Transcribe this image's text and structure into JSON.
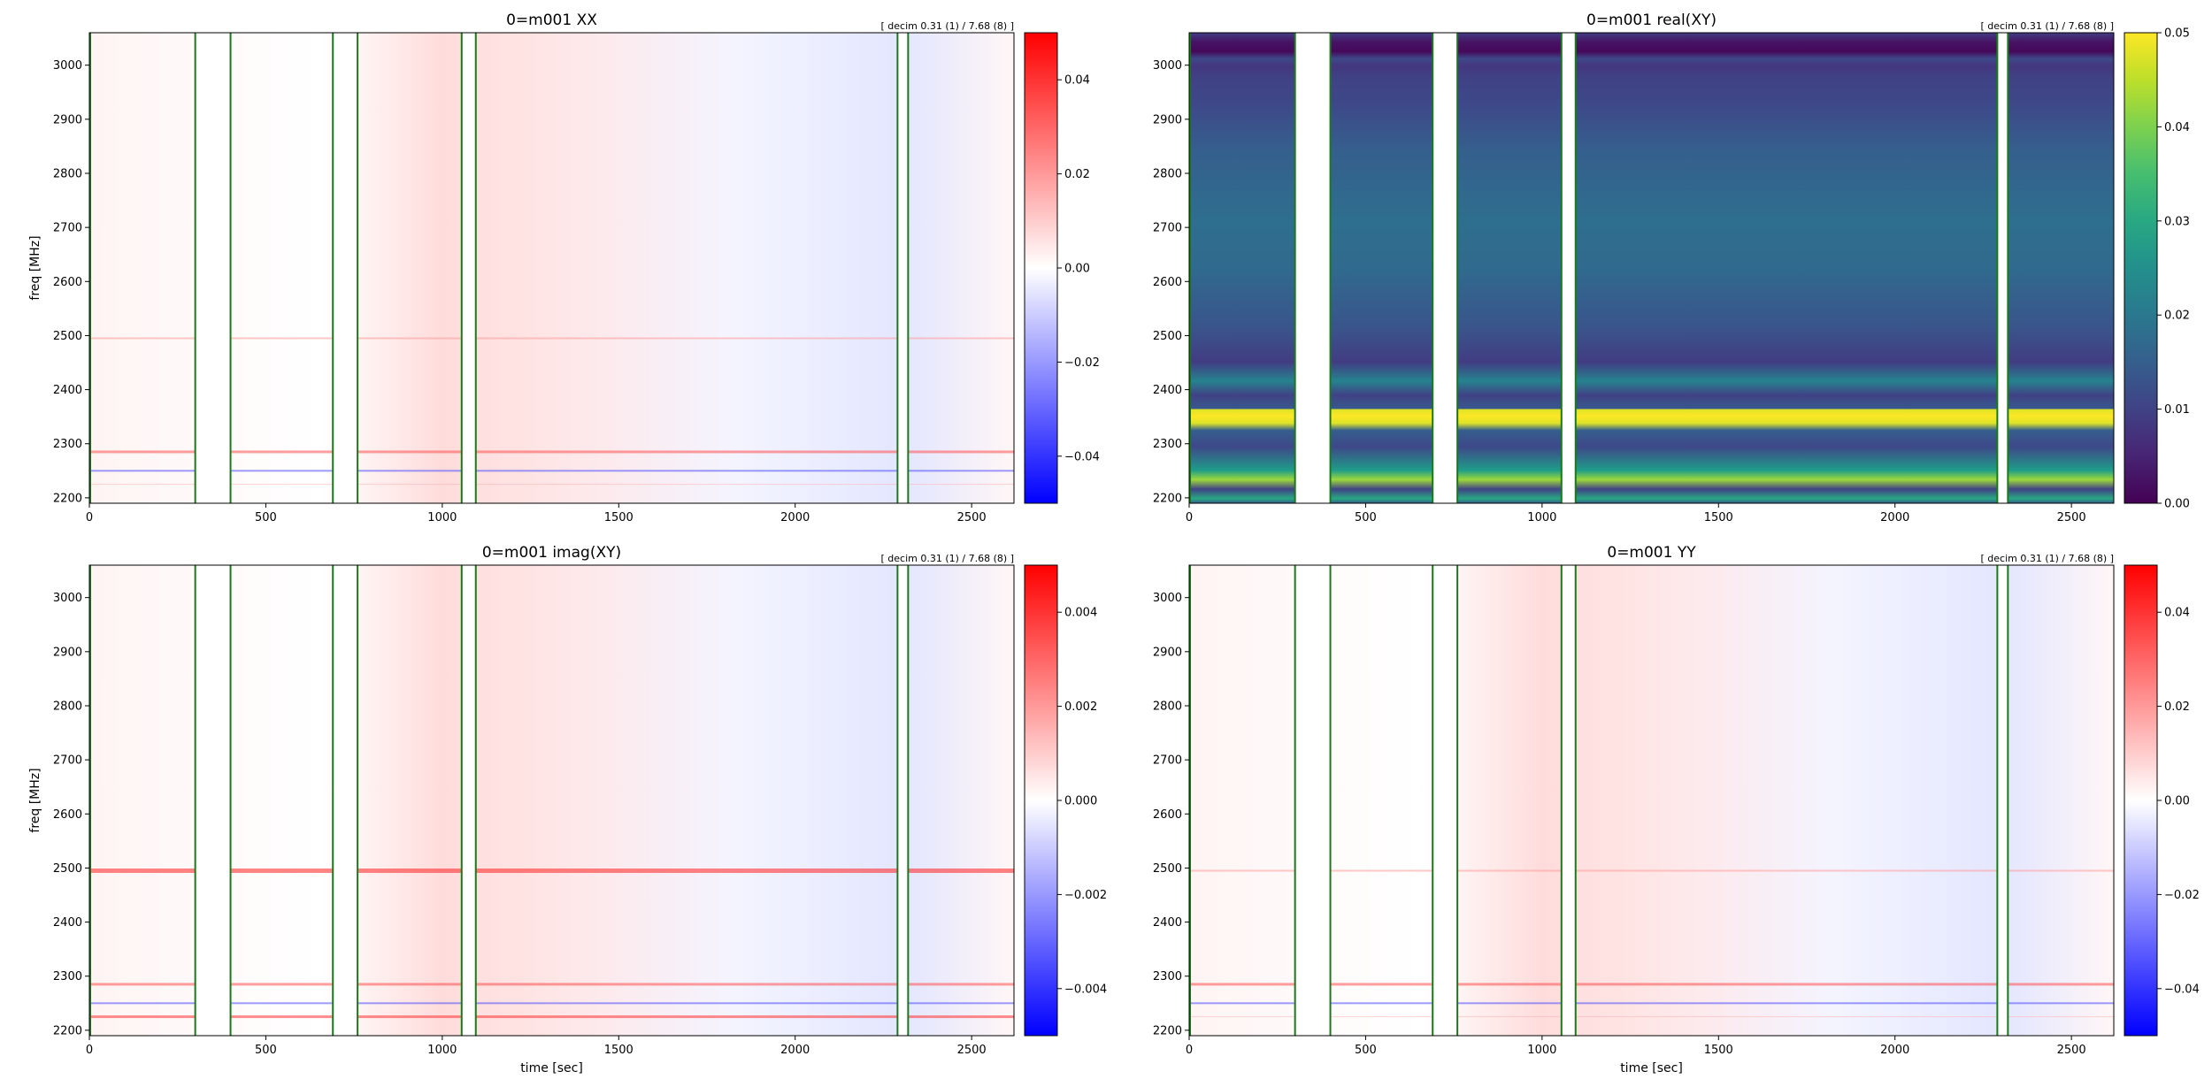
{
  "chart_data": [
    {
      "type": "heatmap",
      "title": "0=m001  XX",
      "annotation": "[ decim 0.31 (1) / 7.68 (8) ]",
      "xlabel": "",
      "ylabel": "freq [MHz]",
      "xlim": [
        0,
        2620
      ],
      "ylim": [
        2190,
        3060
      ],
      "x_ticks": [
        "0",
        "500",
        "1000",
        "1500",
        "2000",
        "2500"
      ],
      "y_ticks": [
        "2200",
        "2300",
        "2400",
        "2500",
        "2600",
        "2700",
        "2800",
        "2900",
        "3000"
      ],
      "colormap": "bwr",
      "color_range": [
        -0.05,
        0.05
      ],
      "colorbar_ticks": [
        "0.04",
        "0.02",
        "0.00",
        "−0.02",
        "−0.04"
      ],
      "flag_gaps_sec": [
        [
          300,
          400
        ],
        [
          690,
          760
        ],
        [
          1055,
          1095
        ],
        [
          2290,
          2320
        ]
      ]
    },
    {
      "type": "heatmap",
      "title": "0=m001  real(XY)",
      "annotation": "[ decim 0.31 (1) / 7.68 (8) ]",
      "xlabel": "",
      "ylabel": "",
      "xlim": [
        0,
        2620
      ],
      "ylim": [
        2190,
        3060
      ],
      "x_ticks": [
        "0",
        "500",
        "1000",
        "1500",
        "2000",
        "2500"
      ],
      "y_ticks": [
        "2200",
        "2300",
        "2400",
        "2500",
        "2600",
        "2700",
        "2800",
        "2900",
        "3000"
      ],
      "colormap": "viridis",
      "color_range": [
        0,
        0.05
      ],
      "colorbar_ticks": [
        "0.05",
        "0.04",
        "0.03",
        "0.02",
        "0.01",
        "0.00"
      ],
      "flag_gaps_sec": [
        [
          300,
          400
        ],
        [
          690,
          760
        ],
        [
          1055,
          1095
        ],
        [
          2290,
          2320
        ]
      ]
    },
    {
      "type": "heatmap",
      "title": "0=m001  imag(XY)",
      "annotation": "[ decim 0.31 (1) / 7.68 (8) ]",
      "xlabel": "time [sec]",
      "ylabel": "freq [MHz]",
      "xlim": [
        0,
        2620
      ],
      "ylim": [
        2190,
        3060
      ],
      "x_ticks": [
        "0",
        "500",
        "1000",
        "1500",
        "2000",
        "2500"
      ],
      "y_ticks": [
        "2200",
        "2300",
        "2400",
        "2500",
        "2600",
        "2700",
        "2800",
        "2900",
        "3000"
      ],
      "colormap": "bwr",
      "color_range": [
        -0.005,
        0.005
      ],
      "colorbar_ticks": [
        "0.004",
        "0.002",
        "0.000",
        "−0.002",
        "−0.004"
      ],
      "flag_gaps_sec": [
        [
          300,
          400
        ],
        [
          690,
          760
        ],
        [
          1055,
          1095
        ],
        [
          2290,
          2320
        ]
      ]
    },
    {
      "type": "heatmap",
      "title": "0=m001  YY",
      "annotation": "[ decim 0.31 (1) / 7.68 (8) ]",
      "xlabel": "time [sec]",
      "ylabel": "",
      "xlim": [
        0,
        2620
      ],
      "ylim": [
        2190,
        3060
      ],
      "x_ticks": [
        "0",
        "500",
        "1000",
        "1500",
        "2000",
        "2500"
      ],
      "y_ticks": [
        "2200",
        "2300",
        "2400",
        "2500",
        "2600",
        "2700",
        "2800",
        "2900",
        "3000"
      ],
      "colormap": "bwr",
      "color_range": [
        -0.05,
        0.05
      ],
      "colorbar_ticks": [
        "0.04",
        "0.02",
        "0.00",
        "−0.02",
        "−0.04"
      ],
      "flag_gaps_sec": [
        [
          300,
          400
        ],
        [
          690,
          760
        ],
        [
          1055,
          1095
        ],
        [
          2290,
          2320
        ]
      ]
    }
  ]
}
